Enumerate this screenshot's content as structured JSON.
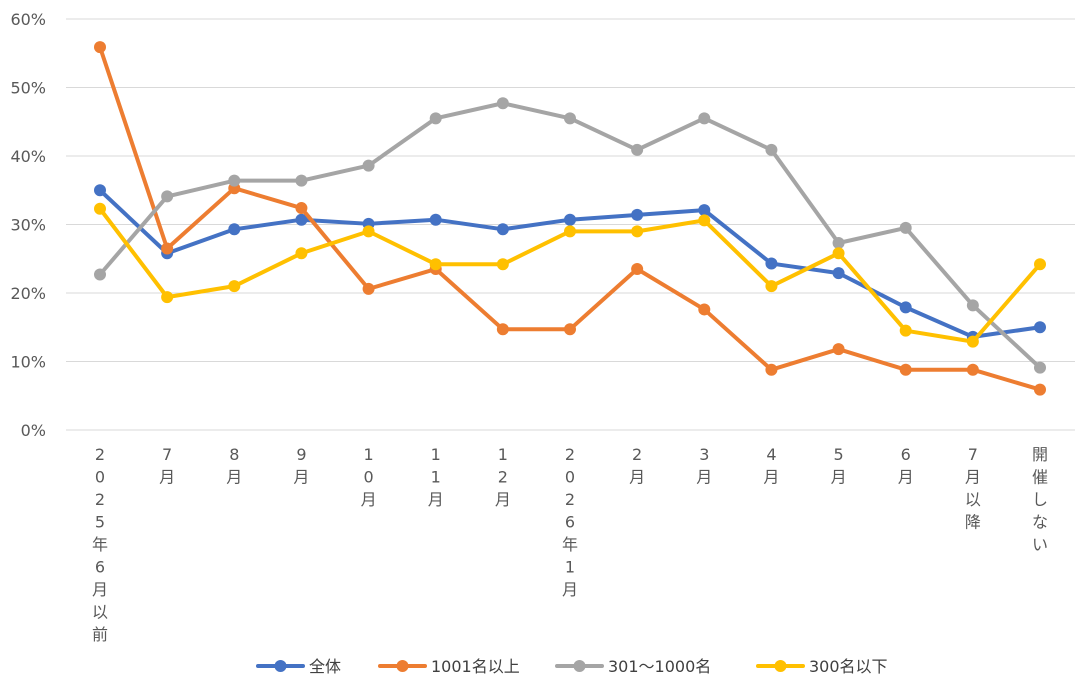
{
  "chart_data": {
    "type": "line",
    "title": "",
    "xlabel": "",
    "ylabel": "",
    "ylim": [
      0,
      60
    ],
    "ytick_step": 10,
    "ytick_labels": [
      "0%",
      "10%",
      "20%",
      "30%",
      "40%",
      "50%",
      "60%"
    ],
    "grid": true,
    "legend_position": "bottom",
    "categories": [
      "2025年6月以前",
      "7月",
      "8月",
      "9月",
      "10月",
      "11月",
      "12月",
      "2026年1月",
      "2月",
      "3月",
      "4月",
      "5月",
      "6月",
      "7月以降",
      "開催しない"
    ],
    "series": [
      {
        "name": "全体",
        "color": "#4472C4",
        "values": [
          35.0,
          25.8,
          29.3,
          30.7,
          30.1,
          30.7,
          29.3,
          30.7,
          31.4,
          32.1,
          24.3,
          22.9,
          17.9,
          13.6,
          15.0
        ]
      },
      {
        "name": "1001名以上",
        "color": "#ED7D31",
        "values": [
          55.9,
          26.5,
          35.3,
          32.4,
          20.6,
          23.5,
          14.7,
          14.7,
          23.5,
          17.6,
          8.8,
          11.8,
          8.8,
          8.8,
          5.9
        ]
      },
      {
        "name": "301～1000名",
        "color": "#A5A5A5",
        "values": [
          22.7,
          34.1,
          36.4,
          36.4,
          38.6,
          45.5,
          47.7,
          45.5,
          40.9,
          45.5,
          40.9,
          27.3,
          29.5,
          18.2,
          9.1
        ]
      },
      {
        "name": "300名以下",
        "color": "#FFC000",
        "values": [
          32.3,
          19.4,
          21.0,
          25.8,
          29.0,
          24.2,
          24.2,
          29.0,
          29.0,
          30.6,
          21.0,
          25.8,
          14.5,
          12.9,
          24.2
        ]
      }
    ]
  }
}
